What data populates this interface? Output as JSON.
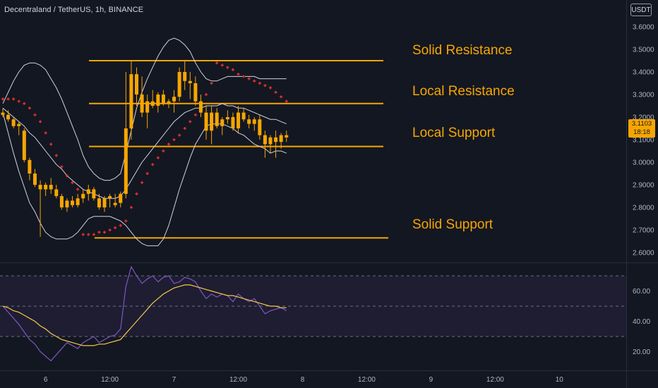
{
  "header": {
    "symbol": "Decentraland / TetherUS, 1h, BINANCE",
    "currency": "USDT"
  },
  "price_tag": {
    "price": "3.1103",
    "countdown": "18:18",
    "color": "#f7a600"
  },
  "levels": [
    {
      "label": "Solid Resistance",
      "price": 3.45
    },
    {
      "label": "Local Resistance",
      "price": 3.26
    },
    {
      "label": "Local Support",
      "price": 3.07
    },
    {
      "label": "Solid Support",
      "price": 2.665
    }
  ],
  "chart_data": [
    {
      "type": "candlestick",
      "name": "price",
      "y_axis": {
        "min": 2.55,
        "max": 3.65,
        "ticks": [
          "2.6000",
          "2.7000",
          "2.8000",
          "2.9000",
          "3.0000",
          "3.1000",
          "3.2000",
          "3.3000",
          "3.4000",
          "3.5000",
          "3.6000"
        ]
      },
      "x_ticks": [
        {
          "label": "6",
          "index": 8
        },
        {
          "label": "12:00",
          "index": 20
        },
        {
          "label": "7",
          "index": 32
        },
        {
          "label": "12:00",
          "index": 44
        },
        {
          "label": "8",
          "index": 56
        },
        {
          "label": "12:00",
          "index": 68
        },
        {
          "label": "9",
          "index": 80
        },
        {
          "label": "12:00",
          "index": 92
        },
        {
          "label": "10",
          "index": 104
        }
      ],
      "candles": [
        [
          3.22,
          3.24,
          3.2,
          3.21
        ],
        [
          3.21,
          3.23,
          3.18,
          3.19
        ],
        [
          3.19,
          3.2,
          3.15,
          3.16
        ],
        [
          3.16,
          3.18,
          3.12,
          3.17
        ],
        [
          3.14,
          3.15,
          3.0,
          3.01
        ],
        [
          3.01,
          3.02,
          2.92,
          2.95
        ],
        [
          2.95,
          2.97,
          2.89,
          2.9
        ],
        [
          2.9,
          2.92,
          2.67,
          2.88
        ],
        [
          2.88,
          2.91,
          2.85,
          2.9
        ],
        [
          2.9,
          2.93,
          2.86,
          2.88
        ],
        [
          2.88,
          2.9,
          2.84,
          2.85
        ],
        [
          2.85,
          2.86,
          2.79,
          2.8
        ],
        [
          2.8,
          2.84,
          2.78,
          2.83
        ],
        [
          2.83,
          2.85,
          2.8,
          2.81
        ],
        [
          2.81,
          2.86,
          2.8,
          2.84
        ],
        [
          2.84,
          2.88,
          2.82,
          2.86
        ],
        [
          2.86,
          2.9,
          2.83,
          2.88
        ],
        [
          2.88,
          2.89,
          2.83,
          2.84
        ],
        [
          2.84,
          2.86,
          2.79,
          2.8
        ],
        [
          2.8,
          2.85,
          2.78,
          2.84
        ],
        [
          2.84,
          2.86,
          2.8,
          2.85
        ],
        [
          2.81,
          2.86,
          2.8,
          2.82
        ],
        [
          2.82,
          2.87,
          2.8,
          2.86
        ],
        [
          2.86,
          3.4,
          2.84,
          3.15
        ],
        [
          3.15,
          3.45,
          3.1,
          3.39
        ],
        [
          3.39,
          3.42,
          3.25,
          3.3
        ],
        [
          3.3,
          3.38,
          3.2,
          3.22
        ],
        [
          3.22,
          3.3,
          3.15,
          3.27
        ],
        [
          3.27,
          3.32,
          3.24,
          3.25
        ],
        [
          3.25,
          3.31,
          3.22,
          3.3
        ],
        [
          3.3,
          3.32,
          3.25,
          3.26
        ],
        [
          3.26,
          3.28,
          3.24,
          3.27
        ],
        [
          3.27,
          3.32,
          3.22,
          3.29
        ],
        [
          3.29,
          3.42,
          3.27,
          3.4
        ],
        [
          3.4,
          3.45,
          3.32,
          3.36
        ],
        [
          3.36,
          3.4,
          3.28,
          3.35
        ],
        [
          3.35,
          3.38,
          3.25,
          3.27
        ],
        [
          3.27,
          3.3,
          3.2,
          3.22
        ],
        [
          3.22,
          3.25,
          3.1,
          3.14
        ],
        [
          3.14,
          3.25,
          3.08,
          3.22
        ],
        [
          3.22,
          3.24,
          3.15,
          3.16
        ],
        [
          3.16,
          3.2,
          3.12,
          3.19
        ],
        [
          3.19,
          3.23,
          3.17,
          3.2
        ],
        [
          3.2,
          3.22,
          3.14,
          3.15
        ],
        [
          3.15,
          3.25,
          3.13,
          3.22
        ],
        [
          3.22,
          3.24,
          3.18,
          3.19
        ],
        [
          3.19,
          3.21,
          3.15,
          3.17
        ],
        [
          3.17,
          3.2,
          3.14,
          3.19
        ],
        [
          3.19,
          3.21,
          3.1,
          3.12
        ],
        [
          3.12,
          3.14,
          3.02,
          3.08
        ],
        [
          3.08,
          3.12,
          3.04,
          3.11
        ],
        [
          3.11,
          3.14,
          3.02,
          3.09
        ],
        [
          3.09,
          3.13,
          3.06,
          3.12
        ],
        [
          3.12,
          3.14,
          3.09,
          3.11
        ]
      ],
      "bollinger_upper": [
        3.26,
        3.31,
        3.36,
        3.4,
        3.43,
        3.44,
        3.44,
        3.43,
        3.41,
        3.37,
        3.33,
        3.28,
        3.22,
        3.16,
        3.1,
        3.03,
        2.98,
        2.95,
        2.93,
        2.92,
        2.92,
        2.93,
        2.95,
        3.04,
        3.14,
        3.24,
        3.31,
        3.37,
        3.42,
        3.47,
        3.51,
        3.54,
        3.55,
        3.54,
        3.52,
        3.49,
        3.44,
        3.4,
        3.37,
        3.36,
        3.36,
        3.37,
        3.38,
        3.38,
        3.38,
        3.38,
        3.38,
        3.38,
        3.37,
        3.37,
        3.37,
        3.37,
        3.37,
        3.37
      ],
      "bollinger_basis": [
        3.24,
        3.22,
        3.2,
        3.18,
        3.16,
        3.13,
        3.11,
        3.08,
        3.05,
        3.02,
        2.99,
        2.97,
        2.94,
        2.92,
        2.9,
        2.88,
        2.87,
        2.86,
        2.85,
        2.84,
        2.84,
        2.84,
        2.85,
        2.88,
        2.92,
        2.96,
        3.0,
        3.03,
        3.06,
        3.09,
        3.12,
        3.15,
        3.18,
        3.2,
        3.22,
        3.23,
        3.24,
        3.24,
        3.25,
        3.25,
        3.25,
        3.26,
        3.25,
        3.25,
        3.24,
        3.24,
        3.23,
        3.22,
        3.21,
        3.2,
        3.19,
        3.19,
        3.18,
        3.17
      ],
      "bollinger_lower": [
        3.22,
        3.13,
        3.04,
        2.96,
        2.89,
        2.82,
        2.78,
        2.73,
        2.69,
        2.67,
        2.66,
        2.66,
        2.66,
        2.67,
        2.69,
        2.72,
        2.75,
        2.76,
        2.76,
        2.76,
        2.76,
        2.75,
        2.74,
        2.72,
        2.69,
        2.66,
        2.64,
        2.63,
        2.63,
        2.63,
        2.66,
        2.72,
        2.8,
        2.88,
        2.95,
        3.02,
        3.08,
        3.12,
        3.16,
        3.17,
        3.17,
        3.17,
        3.16,
        3.15,
        3.13,
        3.12,
        3.1,
        3.08,
        3.07,
        3.06,
        3.04,
        3.05,
        3.05,
        3.04
      ],
      "parabolic_sar": [
        [
          0,
          3.28
        ],
        [
          1,
          3.28
        ],
        [
          2,
          3.28
        ],
        [
          3,
          3.27
        ],
        [
          4,
          3.26
        ],
        [
          5,
          3.24
        ],
        [
          6,
          3.21
        ],
        [
          7,
          3.18
        ],
        [
          8,
          3.13
        ],
        [
          9,
          3.08
        ],
        [
          10,
          3.03
        ],
        [
          11,
          2.98
        ],
        [
          12,
          2.94
        ],
        [
          13,
          2.91
        ],
        [
          14,
          2.88
        ],
        [
          15,
          2.68
        ],
        [
          16,
          2.68
        ],
        [
          17,
          2.68
        ],
        [
          18,
          2.69
        ],
        [
          19,
          2.69
        ],
        [
          20,
          2.7
        ],
        [
          21,
          2.71
        ],
        [
          22,
          2.72
        ],
        [
          23,
          2.74
        ],
        [
          24,
          2.8
        ],
        [
          25,
          2.86
        ],
        [
          26,
          2.91
        ],
        [
          27,
          2.95
        ],
        [
          28,
          2.99
        ],
        [
          29,
          3.02
        ],
        [
          30,
          3.05
        ],
        [
          31,
          3.08
        ],
        [
          32,
          3.1
        ],
        [
          33,
          3.12
        ],
        [
          34,
          3.15
        ],
        [
          35,
          3.18
        ],
        [
          36,
          3.21
        ],
        [
          37,
          3.25
        ],
        [
          38,
          3.3
        ],
        [
          39,
          3.35
        ],
        [
          40,
          3.44
        ],
        [
          41,
          3.43
        ],
        [
          42,
          3.42
        ],
        [
          43,
          3.41
        ],
        [
          44,
          3.39
        ],
        [
          45,
          3.38
        ],
        [
          46,
          3.37
        ],
        [
          47,
          3.36
        ],
        [
          48,
          3.35
        ],
        [
          49,
          3.34
        ],
        [
          50,
          3.33
        ],
        [
          51,
          3.31
        ],
        [
          52,
          3.29
        ],
        [
          53,
          3.27
        ]
      ]
    },
    {
      "type": "line",
      "name": "oscillator",
      "y_axis": {
        "min": 10,
        "max": 77,
        "ticks": [
          "20.00",
          "40.00",
          "60.00"
        ],
        "bands": [
          70,
          50,
          30
        ]
      },
      "series": [
        {
          "values": [
            50,
            46,
            42,
            38,
            33,
            28,
            25,
            20,
            17,
            14,
            18,
            22,
            26,
            24,
            22,
            26,
            28,
            30,
            26,
            28,
            30,
            31,
            35,
            63,
            76,
            70,
            65,
            68,
            70,
            66,
            69,
            70,
            65,
            66,
            69,
            68,
            66,
            60,
            55,
            58,
            56,
            58,
            57,
            53,
            58,
            55,
            53,
            55,
            50,
            45,
            47,
            48,
            49,
            47
          ],
          "color": "#7e57c2"
        },
        {
          "values": [
            50,
            49,
            47,
            46,
            44,
            42,
            40,
            37,
            35,
            32,
            30,
            28,
            27,
            26,
            25,
            24,
            24,
            24,
            25,
            25,
            26,
            27,
            28,
            32,
            36,
            40,
            44,
            48,
            52,
            55,
            58,
            60,
            62,
            63,
            64,
            64,
            63,
            62,
            61,
            60,
            59,
            58,
            57,
            57,
            56,
            55,
            54,
            53,
            52,
            51,
            50,
            50,
            49,
            49
          ],
          "color": "#f7c845"
        }
      ]
    }
  ]
}
